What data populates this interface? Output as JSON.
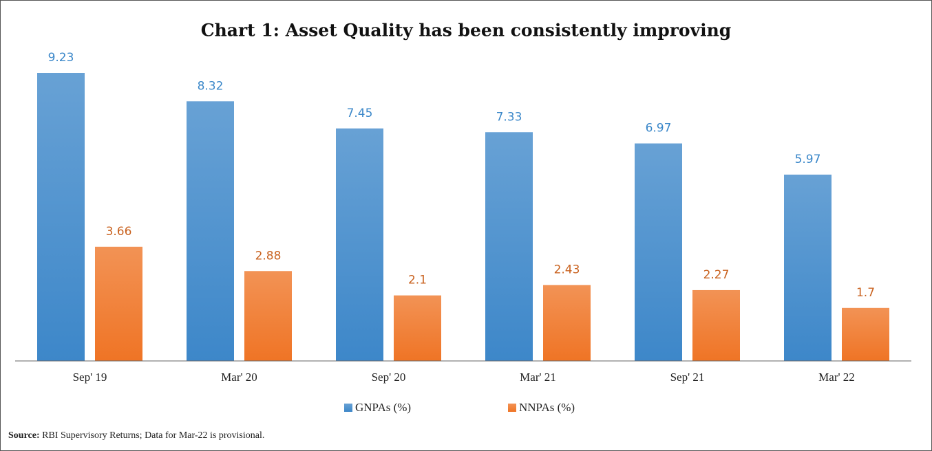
{
  "chart_data": {
    "type": "bar",
    "title": "Chart 1: Asset Quality has been consistently improving",
    "categories": [
      "Sep' 19",
      "Mar' 20",
      "Sep' 20",
      "Mar' 21",
      "Sep' 21",
      "Mar' 22"
    ],
    "series": [
      {
        "name": "GNPAs (%)",
        "color": "#3d87c9",
        "label_color": "#3a87c9",
        "values": [
          9.23,
          8.32,
          7.45,
          7.33,
          6.97,
          5.97
        ]
      },
      {
        "name": "NNPAs (%)",
        "color": "#ef7425",
        "label_color": "#c9621f",
        "values": [
          3.66,
          2.88,
          2.1,
          2.43,
          2.27,
          1.7
        ]
      }
    ],
    "source_label": "Source:",
    "source_text": "RBI Supervisory Returns; Data for Mar-22 is provisional."
  }
}
